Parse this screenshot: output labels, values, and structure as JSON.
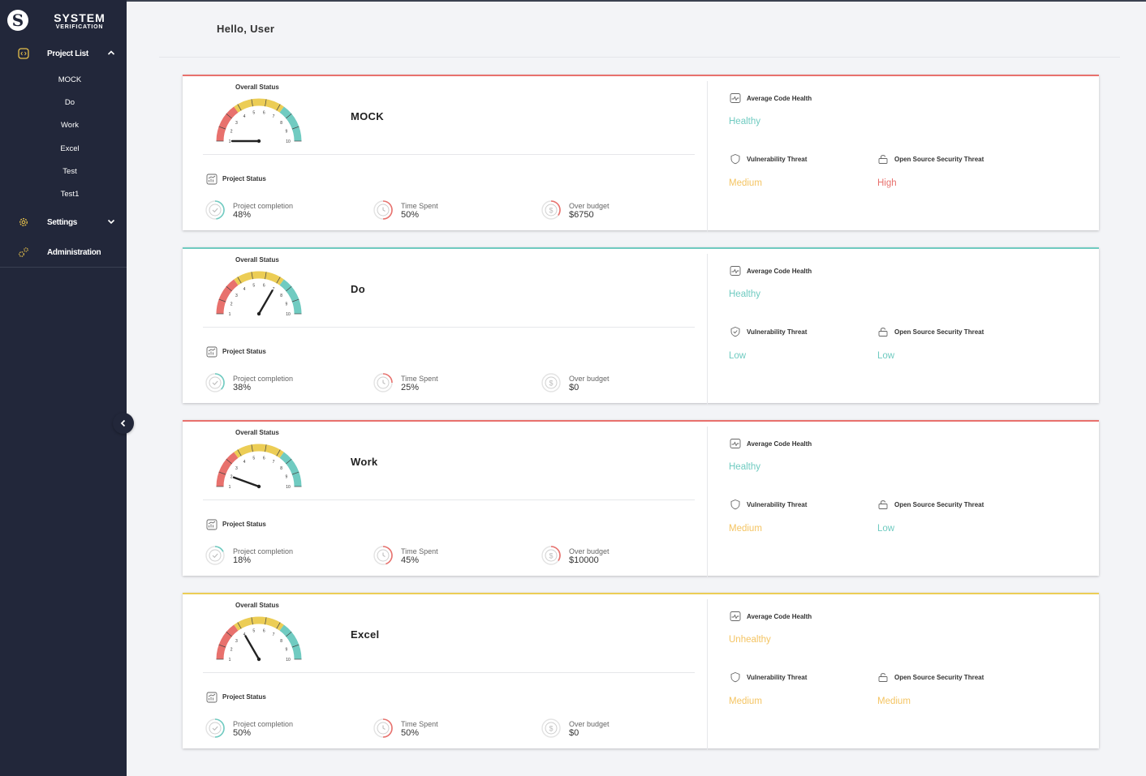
{
  "app": {
    "brand_line1": "SYSTEM",
    "brand_line2": "VERIFICATION",
    "logo_letter": "S"
  },
  "sidebar": {
    "project_list_label": "Project List",
    "projects": [
      "MOCK",
      "Do",
      "Work",
      "Excel",
      "Test",
      "Test1"
    ],
    "settings_label": "Settings",
    "administration_label": "Administration"
  },
  "header": {
    "greeting": "Hello, User"
  },
  "labels": {
    "overall_status": "Overall Status",
    "project_status": "Project Status",
    "project_completion": "Project completion",
    "time_spent": "Time Spent",
    "over_budget": "Over budget",
    "avg_code_health": "Average Code Health",
    "vulnerability_threat": "Vulnerability Threat",
    "oss_threat": "Open Source Security Threat"
  },
  "colors": {
    "red": "#e8716d",
    "yellow": "#eccd55",
    "teal": "#70cbc1",
    "orange": "#f4c462",
    "sidebar_bg": "#22273a",
    "accent_icon": "#e7c14a"
  },
  "gauge_ticks": [
    "1",
    "2",
    "3",
    "4",
    "5",
    "6",
    "7",
    "8",
    "9",
    "10"
  ],
  "cards": [
    {
      "name": "MOCK",
      "border": "red",
      "needle": 1,
      "completion": "48%",
      "completion_pct": 48,
      "time": "50%",
      "time_pct": 50,
      "budget": "$6750",
      "budget_over": true,
      "code_health": "Healthy",
      "code_health_color": "teal",
      "vulnerability": "Medium",
      "vulnerability_color": "orange",
      "vuln_icon": "shield-icon",
      "oss": "High",
      "oss_color": "red"
    },
    {
      "name": "Do",
      "border": "teal",
      "needle": 7,
      "completion": "38%",
      "completion_pct": 38,
      "time": "25%",
      "time_pct": 25,
      "budget": "$0",
      "budget_over": false,
      "code_health": "Healthy",
      "code_health_color": "teal",
      "vulnerability": "Low",
      "vulnerability_color": "teal",
      "vuln_icon": "shield-check-icon",
      "oss": "Low",
      "oss_color": "teal"
    },
    {
      "name": "Work",
      "border": "red",
      "needle": 2,
      "completion": "18%",
      "completion_pct": 18,
      "time": "45%",
      "time_pct": 45,
      "budget": "$10000",
      "budget_over": true,
      "code_health": "Healthy",
      "code_health_color": "teal",
      "vulnerability": "Medium",
      "vulnerability_color": "orange",
      "vuln_icon": "shield-icon",
      "oss": "Low",
      "oss_color": "teal"
    },
    {
      "name": "Excel",
      "border": "yellow",
      "needle": 4,
      "completion": "50%",
      "completion_pct": 50,
      "time": "50%",
      "time_pct": 50,
      "budget": "$0",
      "budget_over": false,
      "code_health": "Unhealthy",
      "code_health_color": "orange",
      "vulnerability": "Medium",
      "vulnerability_color": "orange",
      "vuln_icon": "shield-icon",
      "oss": "Medium",
      "oss_color": "orange"
    }
  ]
}
